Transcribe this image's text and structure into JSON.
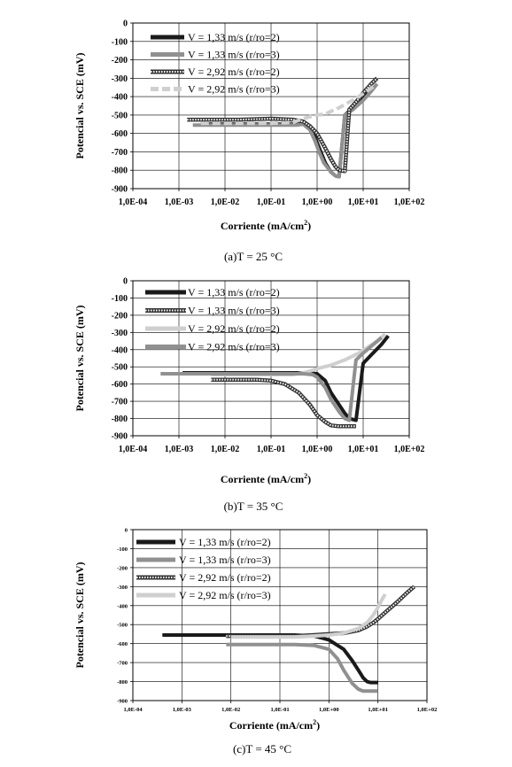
{
  "chart_data": [
    {
      "type": "line",
      "caption": "(a)T = 25 °C",
      "xlabel": "Corriente (mA/cm",
      "xlabel_sup": "2",
      "xlabel_close": ")",
      "ylabel": "Potencial vs. SCE (mV)",
      "x_scale": "log",
      "xlim": [
        0.0001,
        100
      ],
      "ylim": [
        -900,
        0
      ],
      "x_ticks": [
        "1,0E-04",
        "1,0E-03",
        "1,0E-02",
        "1,0E-01",
        "1,0E+00",
        "1,0E+01",
        "1,0E+02"
      ],
      "y_ticks": [
        "0",
        "-100",
        "-200",
        "-300",
        "-400",
        "-500",
        "-600",
        "-700",
        "-800",
        "-900"
      ],
      "grid": true,
      "legend_position": "top-left",
      "series": [
        {
          "name": "V = 1,33 m/s (r/ro=2)",
          "color": "#1a1a1a",
          "style": "solid",
          "x": [
            0.003,
            0.01,
            0.03,
            0.1,
            0.2,
            0.35,
            0.5,
            0.7,
            0.85,
            1,
            1.2,
            1.5,
            2,
            2.5,
            3,
            4,
            6,
            10,
            15
          ],
          "y": [
            -550,
            -550,
            -550,
            -550,
            -550,
            -550,
            -545,
            -560,
            -600,
            -650,
            -700,
            -760,
            -810,
            -830,
            -835,
            -500,
            -460,
            -400,
            -360
          ]
        },
        {
          "name": "V = 1,33 m/s (r/ro=3)",
          "color": "#909090",
          "style": "solid",
          "x": [
            0.002,
            0.01,
            0.03,
            0.1,
            0.2,
            0.35,
            0.5,
            0.7,
            0.9,
            1.1,
            1.4,
            2,
            2.5,
            3,
            4,
            6,
            10,
            15,
            20
          ],
          "y": [
            -555,
            -555,
            -555,
            -555,
            -555,
            -555,
            -550,
            -580,
            -640,
            -700,
            -760,
            -810,
            -830,
            -835,
            -500,
            -470,
            -420,
            -370,
            -330
          ]
        },
        {
          "name": "V = 2,92 m/s (r/ro=2)",
          "color": "#333333",
          "style": "dotted",
          "x": [
            0.0015,
            0.005,
            0.02,
            0.1,
            0.3,
            0.5,
            0.7,
            1,
            1.5,
            2,
            2.5,
            3,
            4,
            5,
            7,
            10,
            15,
            20
          ],
          "y": [
            -525,
            -525,
            -525,
            -520,
            -525,
            -535,
            -560,
            -600,
            -680,
            -740,
            -780,
            -800,
            -805,
            -470,
            -430,
            -380,
            -330,
            -300
          ]
        },
        {
          "name": "V = 2,92 m/s (r/ro=3)",
          "color": "#cfcfcf",
          "style": "dashed",
          "x": [
            0.003,
            0.01,
            0.03,
            0.1,
            0.3,
            0.5,
            0.8,
            1,
            1.5,
            2,
            3,
            5,
            8,
            12,
            18
          ],
          "y": [
            -545,
            -545,
            -545,
            -545,
            -540,
            -520,
            -505,
            -500,
            -495,
            -480,
            -460,
            -430,
            -400,
            -370,
            -340
          ]
        }
      ]
    },
    {
      "type": "line",
      "caption": "(b)T = 35 °C",
      "xlabel": "Corriente (mA/cm",
      "xlabel_sup": "2",
      "xlabel_close": ")",
      "ylabel": "Potencial vs. SCE (mV)",
      "x_scale": "log",
      "xlim": [
        0.0001,
        100
      ],
      "ylim": [
        -900,
        0
      ],
      "x_ticks": [
        "1,0E-04",
        "1,0E-03",
        "1,0E-02",
        "1,0E-01",
        "1,0E+00",
        "1,0E+01",
        "1,0E+02"
      ],
      "y_ticks": [
        "0",
        "-100",
        "-200",
        "-300",
        "-400",
        "-500",
        "-600",
        "-700",
        "-800",
        "-900"
      ],
      "grid": true,
      "legend_position": "top-left",
      "series": [
        {
          "name": "V = 1,33 m/s (r/ro=2)",
          "color": "#1a1a1a",
          "style": "solid",
          "x": [
            0.0012,
            0.005,
            0.02,
            0.1,
            0.3,
            0.6,
            1,
            1.5,
            2,
            3,
            4,
            5,
            7,
            10,
            15,
            25,
            35
          ],
          "y": [
            -535,
            -535,
            -535,
            -535,
            -535,
            -535,
            -540,
            -580,
            -650,
            -720,
            -770,
            -800,
            -810,
            -480,
            -430,
            -370,
            -320
          ]
        },
        {
          "name": "V = 1,33 m/s (r/ro=3)",
          "color": "#333333",
          "style": "dotted",
          "x": [
            0.005,
            0.02,
            0.05,
            0.1,
            0.2,
            0.4,
            0.7,
            1,
            1.5,
            2,
            3,
            5,
            7
          ],
          "y": [
            -575,
            -575,
            -575,
            -580,
            -600,
            -650,
            -720,
            -780,
            -820,
            -840,
            -845,
            -845,
            -845
          ]
        },
        {
          "name": "V = 2,92 m/s (r/ro=2)",
          "color": "#cfcfcf",
          "style": "solid",
          "x": [
            0.005,
            0.02,
            0.1,
            0.3,
            0.6,
            1,
            2,
            4,
            8,
            12,
            20,
            30
          ],
          "y": [
            -545,
            -545,
            -545,
            -545,
            -530,
            -510,
            -490,
            -460,
            -420,
            -390,
            -350,
            -310
          ]
        },
        {
          "name": "V = 2,92 m/s (r/ro=3)",
          "color": "#909090",
          "style": "solid",
          "x": [
            0.0004,
            0.002,
            0.01,
            0.05,
            0.2,
            0.5,
            0.8,
            1,
            1.5,
            2,
            3,
            4,
            5,
            7,
            10,
            15,
            25
          ],
          "y": [
            -540,
            -540,
            -540,
            -540,
            -540,
            -540,
            -545,
            -560,
            -620,
            -690,
            -760,
            -800,
            -810,
            -460,
            -420,
            -380,
            -330
          ]
        }
      ]
    },
    {
      "type": "line",
      "caption": "(c)T = 45 °C",
      "xlabel": "Corriente (mA/cm",
      "xlabel_sup": "2",
      "xlabel_close": ")",
      "ylabel": "Potencial vs. SCE (mV)",
      "x_scale": "log",
      "xlim": [
        0.0001,
        100
      ],
      "ylim": [
        -900,
        0
      ],
      "x_ticks": [
        "1,0E-04",
        "1,0E-03",
        "1,0E-02",
        "1,0E-01",
        "1,0E+00",
        "1,0E+01",
        "1,0E+02"
      ],
      "y_ticks": [
        "0",
        "-100",
        "-200",
        "-300",
        "-400",
        "-500",
        "-600",
        "-700",
        "-800",
        "-900"
      ],
      "grid": true,
      "legend_position": "top-left",
      "series": [
        {
          "name": "V = 1,33 m/s (r/ro=2)",
          "color": "#1a1a1a",
          "style": "solid",
          "x": [
            0.0004,
            0.002,
            0.01,
            0.05,
            0.2,
            0.5,
            1,
            2,
            3,
            4,
            5,
            6,
            7,
            8,
            10
          ],
          "y": [
            -555,
            -555,
            -555,
            -555,
            -555,
            -560,
            -580,
            -630,
            -690,
            -740,
            -780,
            -800,
            -805,
            -805,
            -805
          ]
        },
        {
          "name": "V = 1,33 m/s (r/ro=3)",
          "color": "#909090",
          "style": "solid",
          "x": [
            0.008,
            0.05,
            0.2,
            0.5,
            1,
            1.5,
            2,
            3,
            4,
            5,
            7,
            10
          ],
          "y": [
            -605,
            -605,
            -605,
            -610,
            -630,
            -680,
            -740,
            -810,
            -840,
            -850,
            -850,
            -850
          ]
        },
        {
          "name": "V = 2,92 m/s (r/ro=2)",
          "color": "#333333",
          "style": "dotted",
          "x": [
            0.008,
            0.05,
            0.2,
            0.5,
            1,
            2,
            4,
            6,
            8,
            10,
            15,
            25,
            40,
            55
          ],
          "y": [
            -560,
            -560,
            -560,
            -555,
            -550,
            -545,
            -530,
            -510,
            -490,
            -470,
            -430,
            -380,
            -330,
            -300
          ]
        },
        {
          "name": "V = 2,92 m/s (r/ro=3)",
          "color": "#cfcfcf",
          "style": "solid",
          "x": [
            0.01,
            0.05,
            0.2,
            0.5,
            1,
            2,
            4,
            6,
            8,
            10,
            12,
            14
          ],
          "y": [
            -565,
            -565,
            -565,
            -560,
            -555,
            -545,
            -520,
            -490,
            -450,
            -410,
            -370,
            -340
          ]
        }
      ]
    }
  ]
}
